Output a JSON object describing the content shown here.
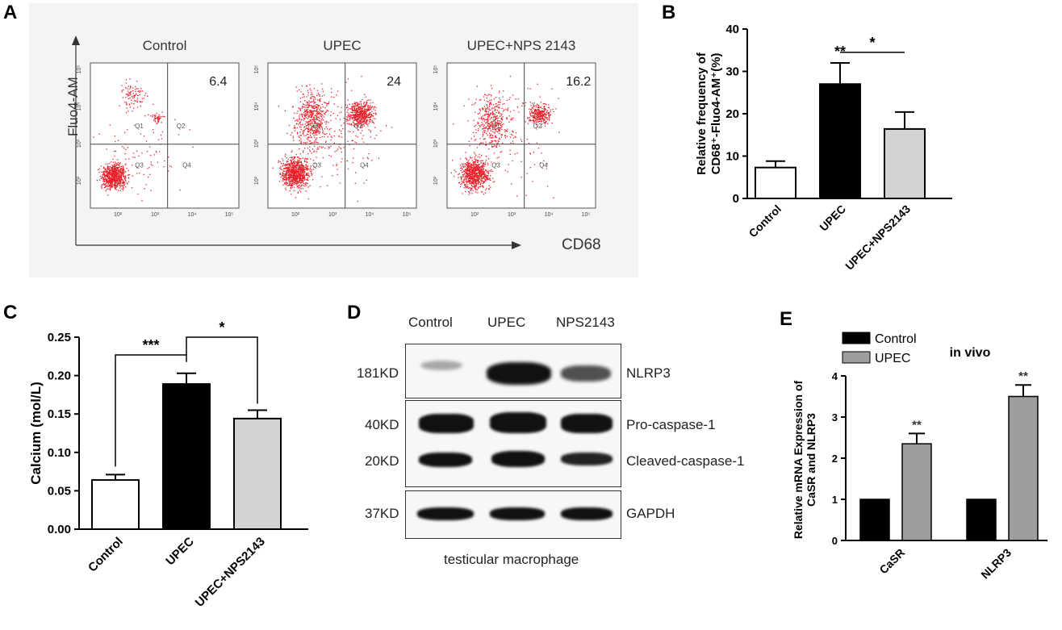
{
  "panels": {
    "a": "A",
    "b": "B",
    "c": "C",
    "d": "D",
    "e": "E"
  },
  "colors": {
    "dots": "#e8202a",
    "black_bar": "#000000",
    "gray_bar": "#d3d3d3",
    "dark_gray_bar": "#9e9e9e"
  },
  "flow": {
    "y_axis_label": "Fluo4-AM",
    "x_axis_label": "CD68",
    "plots": [
      {
        "title": "Control",
        "q2_value": "6.4",
        "q1": "Q1",
        "q2": "Q2",
        "q3": "Q3",
        "q4": "Q4"
      },
      {
        "title": "UPEC",
        "q2_value": "24",
        "q1": "Q1",
        "q2": "Q2",
        "q3": "Q3",
        "q4": "Q4"
      },
      {
        "title": "UPEC+NPS 2143",
        "q2_value": "16.2",
        "q1": "Q1",
        "q2": "Q2",
        "q3": "Q3",
        "q4": "Q4"
      }
    ],
    "ticks": [
      "10²",
      "10³",
      "10⁴",
      "10⁵"
    ]
  },
  "western": {
    "lanes": [
      "Control",
      "UPEC",
      "NPS2143"
    ],
    "kd_labels": [
      "181KD",
      "40KD",
      "20KD",
      "37KD"
    ],
    "protein_labels": [
      "NLRP3",
      "Pro-caspase-1",
      "Cleaved-caspase-1",
      "GAPDH"
    ],
    "caption": "testicular macrophage"
  },
  "chart_data": [
    {
      "panel": "B",
      "type": "bar",
      "categories": [
        "Control",
        "UPEC",
        "UPEC+NPS2143"
      ],
      "values": [
        7.3,
        27,
        16.4
      ],
      "errors": [
        1.5,
        5,
        4
      ],
      "fills": [
        "#ffffff",
        "#000000",
        "#d3d3d3"
      ],
      "ylabel_line1": "Relative frequency of",
      "ylabel_line2": "CD68⁺-Fluo4-AM⁺(%)",
      "ylim": [
        0,
        40
      ],
      "yticks": [
        "0",
        "10",
        "20",
        "30",
        "40"
      ],
      "annotations": [
        {
          "text": "**",
          "on": "UPEC"
        },
        {
          "text": "*",
          "between": [
            "UPEC",
            "UPEC+NPS2143"
          ]
        }
      ]
    },
    {
      "panel": "C",
      "type": "bar",
      "categories": [
        "Control",
        "UPEC",
        "UPEC+NPS2143"
      ],
      "values": [
        0.064,
        0.189,
        0.144
      ],
      "errors": [
        0.007,
        0.014,
        0.011
      ],
      "fills": [
        "#ffffff",
        "#000000",
        "#d3d3d3"
      ],
      "ylabel": "Calcium (mol/L)",
      "ylim": [
        0,
        0.25
      ],
      "yticks": [
        "0.00",
        "0.05",
        "0.10",
        "0.15",
        "0.20",
        "0.25"
      ],
      "annotations": [
        {
          "text": "***",
          "between": [
            "Control",
            "UPEC"
          ]
        },
        {
          "text": "*",
          "between": [
            "UPEC",
            "UPEC+NPS2143"
          ]
        }
      ]
    },
    {
      "panel": "E",
      "type": "bar",
      "title": "in vivo",
      "categories": [
        "CaSR",
        "NLRP3"
      ],
      "series": [
        {
          "name": "Control",
          "values": [
            1.0,
            1.0
          ],
          "errors": [
            0,
            0
          ],
          "color": "#000000"
        },
        {
          "name": "UPEC",
          "values": [
            2.35,
            3.5
          ],
          "errors": [
            0.25,
            0.28
          ],
          "color": "#9e9e9e"
        }
      ],
      "ylabel_line1": "Relative mRNA Expression of",
      "ylabel_line2": "CaSR and NLRP3",
      "ylim": [
        0,
        4
      ],
      "yticks": [
        "0",
        "1",
        "2",
        "3",
        "4"
      ],
      "annotations": [
        {
          "text": "**",
          "on": "CaSR/UPEC"
        },
        {
          "text": "**",
          "on": "NLRP3/UPEC"
        }
      ],
      "legend": "top-left"
    }
  ]
}
